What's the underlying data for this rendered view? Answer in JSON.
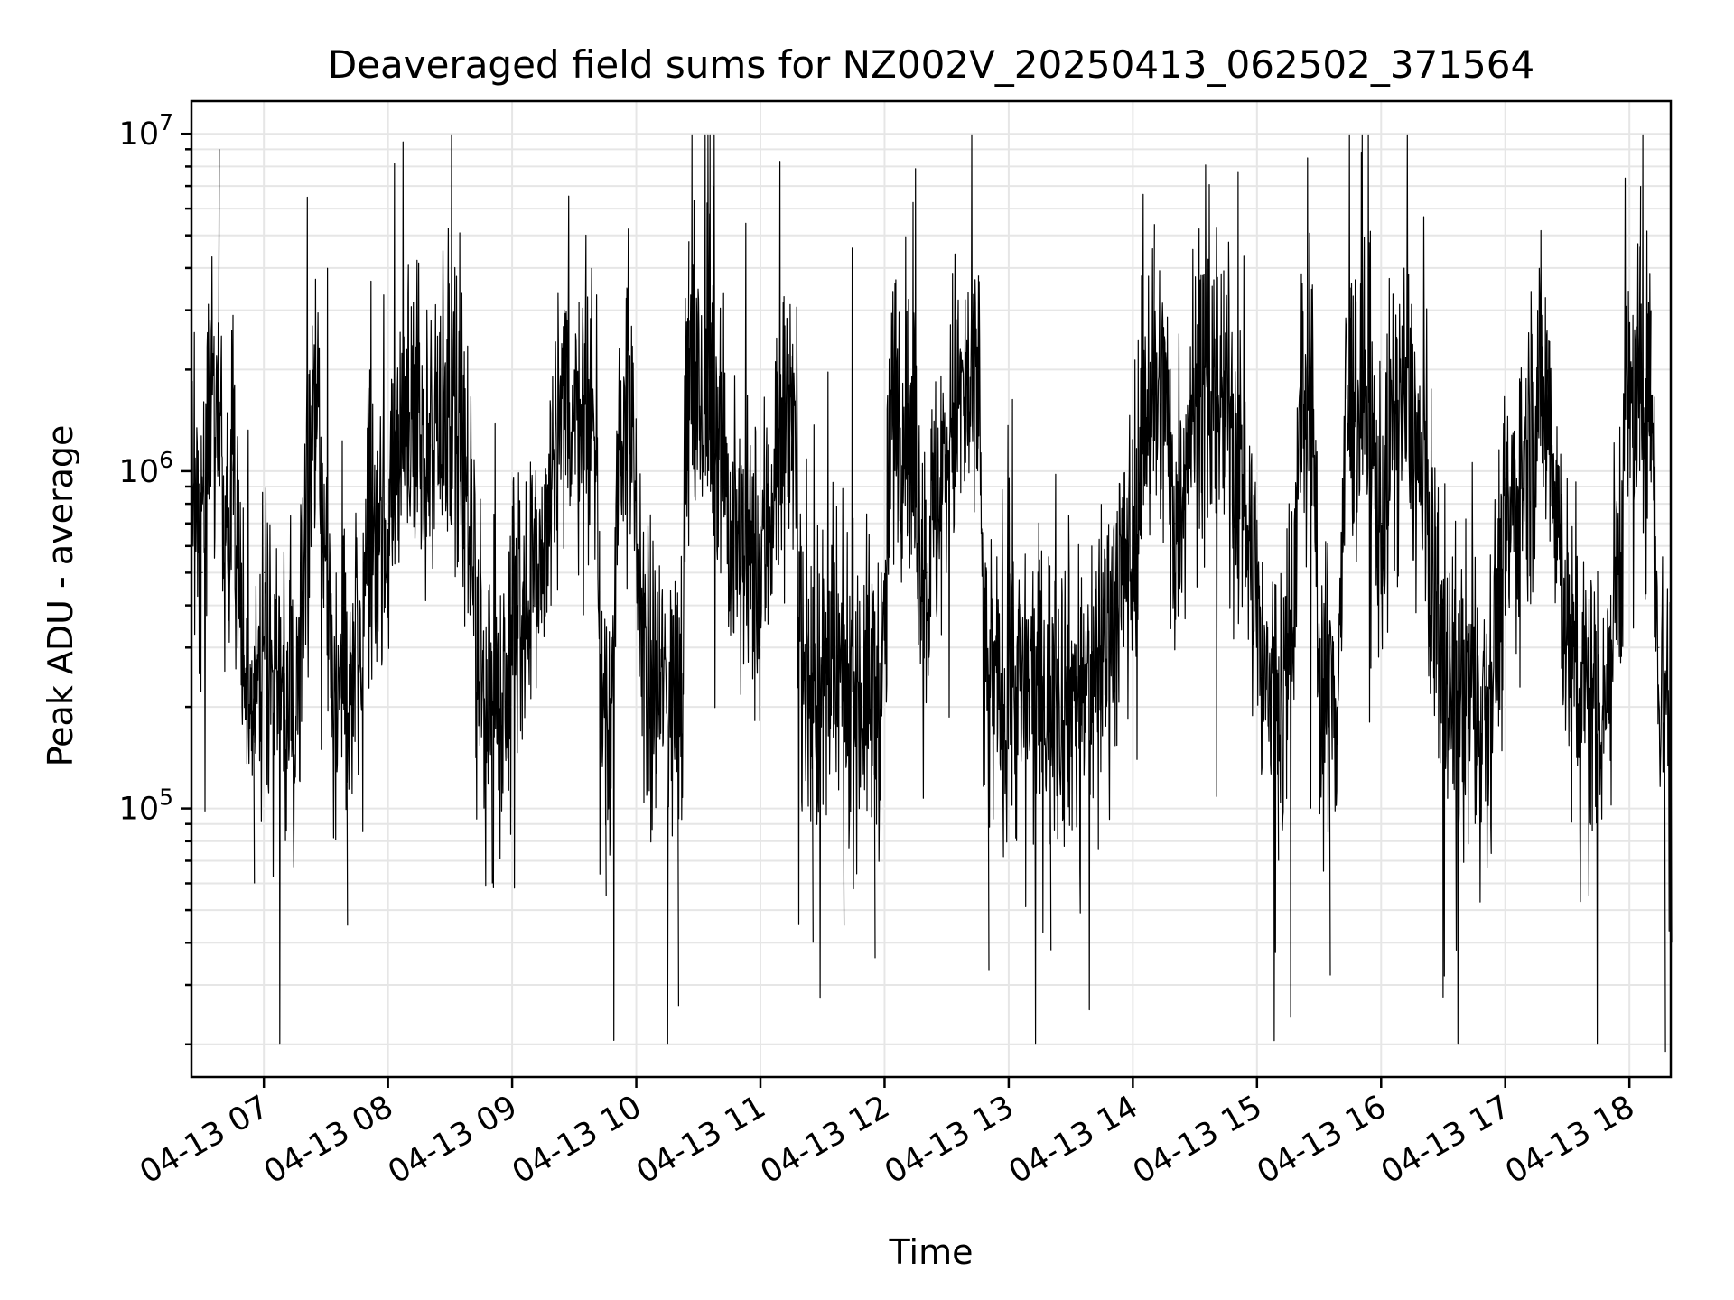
{
  "chart_data": {
    "type": "line",
    "title": "Deaveraged field sums for NZ002V_20250413_062502_371564",
    "xlabel": "Time",
    "ylabel": "Peak ADU - average",
    "yscale": "log",
    "ylim": [
      16000,
      12500000
    ],
    "xlim": [
      "2025-04-13 06:25",
      "2025-04-13 18:20"
    ],
    "grid": true,
    "legend": "none",
    "x_ticks": [
      {
        "at": "2025-04-13 07:00",
        "label": "04-13 07"
      },
      {
        "at": "2025-04-13 08:00",
        "label": "04-13 08"
      },
      {
        "at": "2025-04-13 09:00",
        "label": "04-13 09"
      },
      {
        "at": "2025-04-13 10:00",
        "label": "04-13 10"
      },
      {
        "at": "2025-04-13 11:00",
        "label": "04-13 11"
      },
      {
        "at": "2025-04-13 12:00",
        "label": "04-13 12"
      },
      {
        "at": "2025-04-13 13:00",
        "label": "04-13 13"
      },
      {
        "at": "2025-04-13 14:00",
        "label": "04-13 14"
      },
      {
        "at": "2025-04-13 15:00",
        "label": "04-13 15"
      },
      {
        "at": "2025-04-13 16:00",
        "label": "04-13 16"
      },
      {
        "at": "2025-04-13 17:00",
        "label": "04-13 17"
      },
      {
        "at": "2025-04-13 18:00",
        "label": "04-13 18"
      }
    ],
    "y_ticks": [
      {
        "value": 100000,
        "base": "10",
        "exp": "5"
      },
      {
        "value": 1000000,
        "base": "10",
        "exp": "6"
      },
      {
        "value": 10000000,
        "base": "10",
        "exp": "7"
      }
    ],
    "series": [
      {
        "color": "#000000",
        "points": [
          [
            "2025-04-13 06:25",
            1100000
          ],
          [
            "2025-04-13 06:30",
            500000
          ],
          [
            "2025-04-13 06:34",
            1500000
          ],
          [
            "2025-04-13 06:38",
            9000000
          ],
          [
            "2025-04-13 06:41",
            400000
          ],
          [
            "2025-04-13 06:45",
            1200000
          ],
          [
            "2025-04-13 06:55",
            60000
          ],
          [
            "2025-04-13 07:00",
            500000
          ],
          [
            "2025-04-13 07:10",
            80000
          ],
          [
            "2025-04-13 07:25",
            1800000
          ],
          [
            "2025-04-13 07:40",
            45000
          ],
          [
            "2025-04-13 07:50",
            600000
          ],
          [
            "2025-04-13 08:00",
            700000
          ],
          [
            "2025-04-13 08:10",
            1500000
          ],
          [
            "2025-04-13 08:20",
            1200000
          ],
          [
            "2025-04-13 08:35",
            1700000
          ],
          [
            "2025-04-13 08:50",
            60000
          ],
          [
            "2025-04-13 09:00",
            450000
          ],
          [
            "2025-04-13 09:10",
            400000
          ],
          [
            "2025-04-13 09:20",
            900000
          ],
          [
            "2025-04-13 09:38",
            4000000
          ],
          [
            "2025-04-13 09:45",
            55000
          ],
          [
            "2025-04-13 09:55",
            3500000
          ],
          [
            "2025-04-13 10:00",
            500000
          ],
          [
            "2025-04-13 10:20",
            26000
          ],
          [
            "2025-04-13 10:25",
            4800000
          ],
          [
            "2025-04-13 10:35",
            5800000
          ],
          [
            "2025-04-13 10:37",
            7000000
          ],
          [
            "2025-04-13 10:45",
            600000
          ],
          [
            "2025-04-13 11:00",
            500000
          ],
          [
            "2025-04-13 11:15",
            2200000
          ],
          [
            "2025-04-13 11:25",
            40000
          ],
          [
            "2025-04-13 11:40",
            45000
          ],
          [
            "2025-04-13 11:55",
            36000
          ],
          [
            "2025-04-13 12:05",
            2800000
          ],
          [
            "2025-04-13 12:20",
            500000
          ],
          [
            "2025-04-13 12:45",
            3800000
          ],
          [
            "2025-04-13 12:50",
            33000
          ],
          [
            "2025-04-13 13:00",
            300000
          ],
          [
            "2025-04-13 13:20",
            38000
          ],
          [
            "2025-04-13 13:35",
            200000
          ],
          [
            "2025-04-13 14:00",
            600000
          ],
          [
            "2025-04-13 14:10",
            5400000
          ],
          [
            "2025-04-13 14:20",
            700000
          ],
          [
            "2025-04-13 14:40",
            5300000
          ],
          [
            "2025-04-13 14:50",
            1200000
          ],
          [
            "2025-04-13 15:00",
            400000
          ],
          [
            "2025-04-13 15:10",
            70000
          ],
          [
            "2025-04-13 15:25",
            3300000
          ],
          [
            "2025-04-13 15:35",
            32000
          ],
          [
            "2025-04-13 15:45",
            3500000
          ],
          [
            "2025-04-13 16:00",
            700000
          ],
          [
            "2025-04-13 16:10",
            2300000
          ],
          [
            "2025-04-13 16:30",
            300000
          ],
          [
            "2025-04-13 16:45",
            90000
          ],
          [
            "2025-04-13 17:00",
            600000
          ],
          [
            "2025-04-13 17:20",
            2000000
          ],
          [
            "2025-04-13 17:40",
            55000
          ],
          [
            "2025-04-13 17:55",
            600000
          ],
          [
            "2025-04-13 18:05",
            7000000
          ],
          [
            "2025-04-13 18:10",
            3000000
          ],
          [
            "2025-04-13 18:14",
            300000
          ],
          [
            "2025-04-13 18:17",
            19000
          ],
          [
            "2025-04-13 18:20",
            40000
          ]
        ]
      }
    ]
  }
}
